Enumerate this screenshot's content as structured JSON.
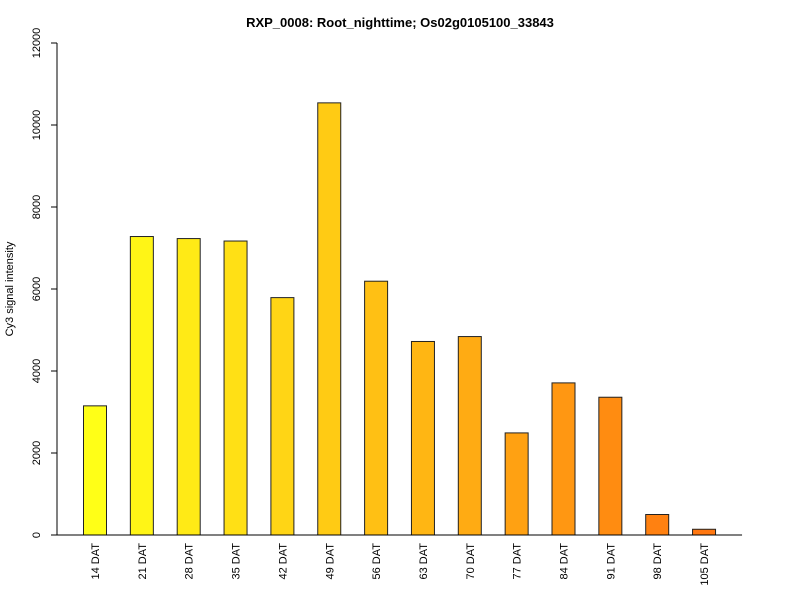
{
  "chart_data": {
    "type": "bar",
    "title": "RXP_0008: Root_nighttime; Os02g0105100_33843",
    "xlabel": "",
    "ylabel": "Cy3 signal intensity",
    "ylim": [
      0,
      12000
    ],
    "yticks": [
      0,
      2000,
      4000,
      6000,
      8000,
      10000,
      12000
    ],
    "categories": [
      "14 DAT",
      "21 DAT",
      "28 DAT",
      "35 DAT",
      "42 DAT",
      "49 DAT",
      "56 DAT",
      "63 DAT",
      "70 DAT",
      "77 DAT",
      "84 DAT",
      "91 DAT",
      "98 DAT",
      "105 DAT"
    ],
    "values": [
      3150,
      7280,
      7230,
      7170,
      5790,
      10540,
      6190,
      4720,
      4840,
      2490,
      3710,
      3360,
      500,
      140
    ],
    "colors": [
      "#ffff17",
      "#fff516",
      "#ffea16",
      "#ffe015",
      "#ffd515",
      "#ffcb14",
      "#ffc014",
      "#ffb613",
      "#ffab13",
      "#ffa112",
      "#ff9712",
      "#ff8c11",
      "#ff8111",
      "#ff7710"
    ],
    "grid": false,
    "legend": "none"
  }
}
